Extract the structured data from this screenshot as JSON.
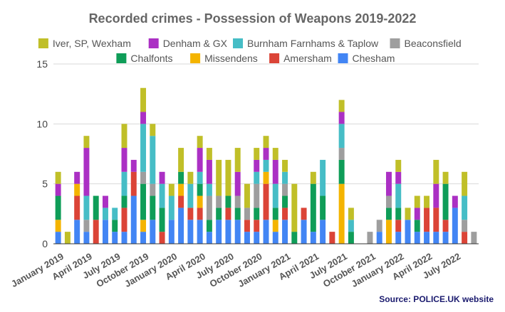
{
  "chart_data": {
    "type": "bar",
    "stacked": true,
    "title": "Recorded crimes - Possession of Weapons 2019-2022",
    "source_note": "Source: POLICE.UK website",
    "xlabel": "",
    "ylabel": "",
    "ylim": [
      0,
      15
    ],
    "yticks": [
      0,
      5,
      10,
      15
    ],
    "grid": true,
    "legend_position": "top",
    "x_tick_labels": [
      {
        "label": "January 2019",
        "index": 0
      },
      {
        "label": "April 2019",
        "index": 3
      },
      {
        "label": "July 2019",
        "index": 6
      },
      {
        "label": "October 2019",
        "index": 9
      },
      {
        "label": "January 2020",
        "index": 12
      },
      {
        "label": "April 2020",
        "index": 15
      },
      {
        "label": "July 2020",
        "index": 18
      },
      {
        "label": "October 2020",
        "index": 21
      },
      {
        "label": "January 2021",
        "index": 24
      },
      {
        "label": "April 2021",
        "index": 27
      },
      {
        "label": "July 2021",
        "index": 30
      },
      {
        "label": "October 2021",
        "index": 33
      },
      {
        "label": "January 2022",
        "index": 36
      },
      {
        "label": "April 2022",
        "index": 39
      },
      {
        "label": "July 2022",
        "index": 42
      }
    ],
    "categories": [
      "Jan 2019",
      "Feb 2019",
      "Mar 2019",
      "Apr 2019",
      "May 2019",
      "Jun 2019",
      "Jul 2019",
      "Aug 2019",
      "Sep 2019",
      "Oct 2019",
      "Nov 2019",
      "Dec 2019",
      "Jan 2020",
      "Feb 2020",
      "Mar 2020",
      "Apr 2020",
      "May 2020",
      "Jun 2020",
      "Jul 2020",
      "Aug 2020",
      "Sep 2020",
      "Oct 2020",
      "Nov 2020",
      "Dec 2020",
      "Jan 2021",
      "Feb 2021",
      "Mar 2021",
      "Apr 2021",
      "May 2021",
      "Jun 2021",
      "Jul 2021",
      "Aug 2021",
      "Sep 2021",
      "Oct 2021",
      "Nov 2021",
      "Dec 2021",
      "Jan 2022",
      "Feb 2022",
      "Mar 2022",
      "Apr 2022",
      "May 2022",
      "Jun 2022",
      "Jul 2022",
      "Aug 2022",
      "Sep 2022"
    ],
    "series": [
      {
        "name": "Chesham",
        "color": "#4285f4",
        "values": [
          1,
          0,
          2,
          1,
          0,
          2,
          1,
          1,
          4,
          1,
          2,
          0,
          2,
          3,
          2,
          2,
          1,
          2,
          2,
          2,
          1,
          1,
          2,
          1,
          2,
          0,
          2,
          1,
          2,
          0,
          0,
          0,
          0,
          0,
          1,
          0,
          1,
          2,
          1,
          1,
          1,
          1,
          3,
          0,
          0
        ]
      },
      {
        "name": "Amersham",
        "color": "#db4437",
        "values": [
          0,
          0,
          2,
          0,
          2,
          0,
          0,
          2,
          2,
          0,
          0,
          1,
          0,
          1,
          1,
          1,
          0,
          0,
          1,
          0,
          1,
          1,
          3,
          0,
          1,
          0,
          1,
          0,
          0,
          1,
          0,
          0,
          0,
          0,
          0,
          0,
          1,
          0,
          0,
          2,
          2,
          1,
          0,
          1,
          0
        ]
      },
      {
        "name": "Missendens",
        "color": "#f4b400",
        "values": [
          1,
          0,
          1,
          0,
          0,
          0,
          0,
          0,
          0,
          1,
          0,
          0,
          0,
          1,
          0,
          1,
          0,
          0,
          0,
          0,
          0,
          0,
          1,
          1,
          0,
          0,
          0,
          0,
          0,
          0,
          5,
          0,
          0,
          0,
          0,
          2,
          0,
          0,
          0,
          0,
          0,
          0,
          0,
          0,
          0
        ]
      },
      {
        "name": "Chalfonts",
        "color": "#0f9d58",
        "values": [
          2,
          0,
          0,
          0,
          2,
          0,
          1,
          1,
          0,
          3,
          2,
          2,
          0,
          1,
          0,
          1,
          1,
          1,
          1,
          1,
          0,
          1,
          0,
          1,
          1,
          1,
          0,
          4,
          2,
          0,
          2,
          1,
          0,
          0,
          0,
          1,
          1,
          0,
          1,
          0,
          0,
          3,
          0,
          0,
          0
        ]
      },
      {
        "name": "Beaconsfield",
        "color": "#9e9e9e",
        "values": [
          0,
          0,
          0,
          1,
          0,
          0,
          0,
          0,
          0,
          1,
          1,
          0,
          0,
          0,
          0,
          0,
          2,
          1,
          0,
          1,
          1,
          2,
          0,
          0,
          1,
          0,
          0,
          0,
          0,
          0,
          1,
          0,
          0,
          1,
          1,
          1,
          0,
          0,
          0,
          0,
          0,
          0,
          0,
          1,
          1
        ]
      },
      {
        "name": "Burnham Farnhams & Taplow",
        "color": "#46bdc6",
        "values": [
          0,
          0,
          0,
          2,
          0,
          1,
          1,
          2,
          0,
          4,
          4,
          2,
          2,
          0,
          2,
          1,
          1,
          0,
          0,
          0,
          0,
          1,
          1,
          2,
          1,
          0,
          0,
          0,
          3,
          0,
          2,
          1,
          0,
          0,
          0,
          0,
          2,
          0,
          0,
          0,
          0,
          0,
          0,
          2,
          0
        ]
      },
      {
        "name": "Denham & GX",
        "color": "#ab30c4",
        "values": [
          1,
          0,
          1,
          4,
          0,
          1,
          0,
          2,
          1,
          1,
          0,
          1,
          0,
          0,
          0,
          2,
          2,
          0,
          0,
          2,
          0,
          1,
          1,
          2,
          0,
          0,
          0,
          0,
          0,
          0,
          1,
          0,
          0,
          0,
          0,
          2,
          1,
          0,
          1,
          0,
          2,
          0,
          1,
          0,
          0
        ]
      },
      {
        "name": "Iver, SP, Wexham",
        "color": "#c0bf28",
        "values": [
          1,
          1,
          0,
          1,
          0,
          0,
          0,
          2,
          0,
          2,
          1,
          0,
          1,
          2,
          1,
          1,
          1,
          3,
          3,
          2,
          2,
          1,
          1,
          1,
          1,
          4,
          0,
          1,
          0,
          0,
          1,
          1,
          0,
          0,
          0,
          0,
          1,
          1,
          1,
          1,
          2,
          1,
          0,
          2,
          0
        ]
      }
    ],
    "legend_order": [
      "Iver, SP, Wexham",
      "Denham & GX",
      "Burnham Farnhams & Taplow",
      "Beaconsfield",
      "Chalfonts",
      "Missendens",
      "Amersham",
      "Chesham"
    ]
  }
}
